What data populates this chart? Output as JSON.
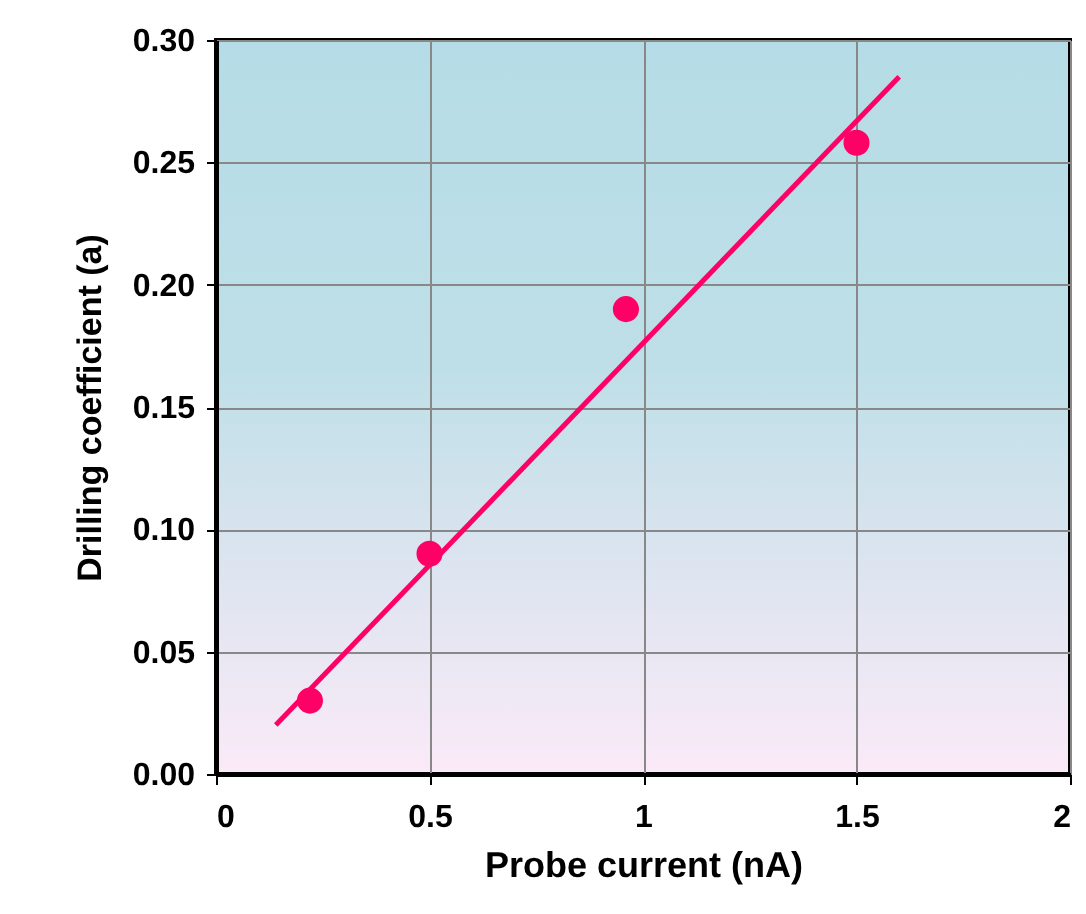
{
  "chart_data": {
    "type": "scatter",
    "xlabel": "Probe current (nA)",
    "ylabel": "Drilling coefficient (a)",
    "series": [
      {
        "color": "#ff0066",
        "marker": "circle",
        "x": [
          0.22,
          0.5,
          0.96,
          1.5
        ],
        "values": [
          0.03,
          0.09,
          0.19,
          0.258
        ]
      },
      {
        "type": "line",
        "color": "#ff0066",
        "marker": "none",
        "line_style": "solid",
        "x": [
          0.14,
          1.6
        ],
        "values": [
          0.02,
          0.285
        ]
      }
    ],
    "xlim": [
      0,
      2
    ],
    "xticks": [
      0,
      0.5,
      1,
      1.5,
      2
    ],
    "ylim": [
      0,
      0.3
    ],
    "yticks": [
      {
        "value": 0,
        "label": "0.00"
      },
      {
        "value": 0.05,
        "label": "0.05"
      },
      {
        "value": 0.1,
        "label": "0.10"
      },
      {
        "value": 0.15,
        "label": "0.15"
      },
      {
        "value": 0.2,
        "label": "0.20"
      },
      {
        "value": 0.25,
        "label": "0.25"
      },
      {
        "value": 0.3,
        "label": "0.30"
      }
    ],
    "grid": true
  }
}
